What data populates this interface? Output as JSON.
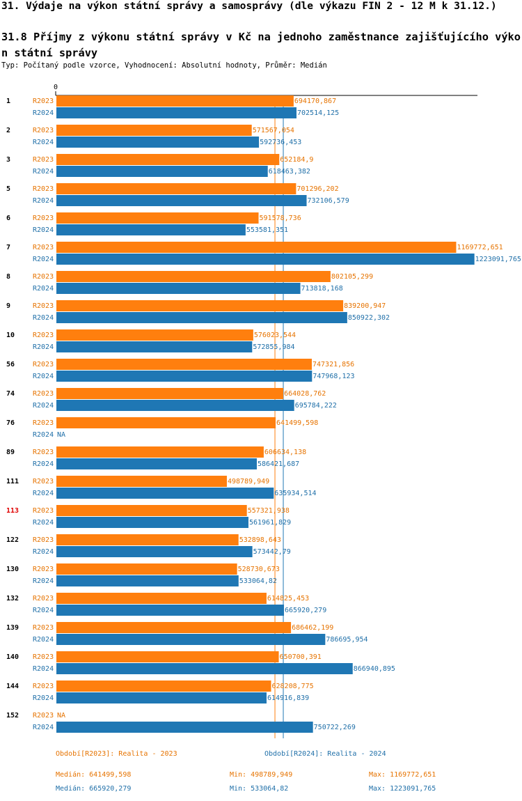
{
  "header": {
    "title": "31. Výdaje na výkon státní správy a samosprávy (dle výkazu FIN 2 - 12 M k 31.12.)",
    "subtitle": "31.8 Příjmy z výkonu státní správy v Kč na jednoho zaměstnance zajišťujícího výkon státní správy",
    "description": "Typ: Počítaný podle vzorce, Vyhodnocení: Absolutní hodnoty, Průměr: Medián"
  },
  "chart_data": {
    "type": "grouped-hbar",
    "categories": [
      "1",
      "2",
      "3",
      "5",
      "6",
      "7",
      "8",
      "9",
      "10",
      "56",
      "74",
      "76",
      "89",
      "111",
      "113",
      "122",
      "130",
      "132",
      "139",
      "140",
      "144",
      "152"
    ],
    "highlight": {
      "index": 14,
      "color": "#e00000"
    },
    "xlim": [
      0,
      1234000
    ],
    "xticks": [
      0
    ],
    "series": [
      {
        "name": "R2023",
        "legend": "Období[R2023]: Realita - 2023",
        "color": "#ff7f0e",
        "text_color": "#e67300",
        "values": [
          694170.867,
          571567.054,
          652184.9,
          701296.202,
          591578.736,
          1169772.651,
          802105.299,
          839200.947,
          576023.544,
          747321.856,
          664028.762,
          641499.598,
          606634.138,
          498789.949,
          557321.938,
          532898.643,
          528730.673,
          614825.453,
          686462.199,
          650700.391,
          628208.775,
          null
        ],
        "value_labels": [
          "694170,867",
          "571567,054",
          "652184,9",
          "701296,202",
          "591578,736",
          "1169772,651",
          "802105,299",
          "839200,947",
          "576023,544",
          "747321,856",
          "664028,762",
          "641499,598",
          "606634,138",
          "498789,949",
          "557321,938",
          "532898,643",
          "528730,673",
          "614825,453",
          "686462,199",
          "650700,391",
          "628208,775",
          "NA"
        ],
        "stats": [
          {
            "label": "Medián:",
            "value": 641499.598,
            "value_label": "641499,598"
          },
          {
            "label": "Min:",
            "value": 498789.949,
            "value_label": "498789,949"
          },
          {
            "label": "Max:",
            "value": 1169772.651,
            "value_label": "1169772,651"
          }
        ]
      },
      {
        "name": "R2024",
        "legend": "Období[R2024]: Realita - 2024",
        "color": "#1f77b4",
        "text_color": "#1f6fa8",
        "values": [
          702514.125,
          592736.453,
          618463.382,
          732106.579,
          553581.351,
          1223091.765,
          713818.168,
          850922.302,
          572855.984,
          747968.123,
          695784.222,
          null,
          586421.687,
          635934.514,
          561961.829,
          573442.79,
          533064.82,
          665920.279,
          786695.954,
          866940.895,
          614916.839,
          750722.269
        ],
        "value_labels": [
          "702514,125",
          "592736,453",
          "618463,382",
          "732106,579",
          "553581,351",
          "1223091,765",
          "713818,168",
          "850922,302",
          "572855,984",
          "747968,123",
          "695784,222",
          "NA",
          "586421,687",
          "635934,514",
          "561961,829",
          "573442,79",
          "533064,82",
          "665920,279",
          "786695,954",
          "866940,895",
          "614916,839",
          "750722,269"
        ],
        "stats": [
          {
            "label": "Medián:",
            "value": 665920.279,
            "value_label": "665920,279"
          },
          {
            "label": "Min:",
            "value": 533064.82,
            "value_label": "533064,82"
          },
          {
            "label": "Max:",
            "value": 1223091.765,
            "value_label": "1223091,765"
          }
        ]
      }
    ]
  }
}
